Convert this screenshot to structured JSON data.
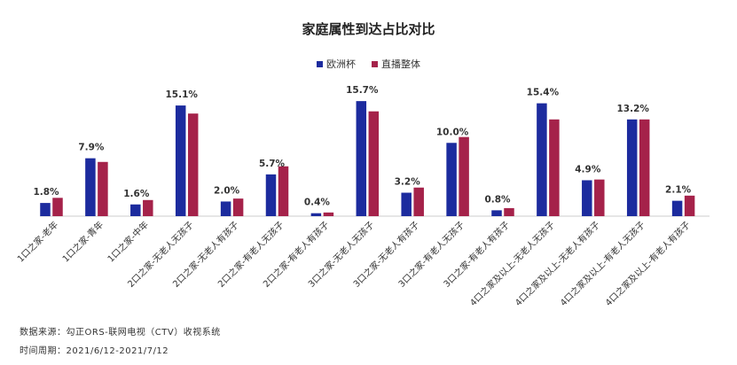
{
  "chart_data": {
    "type": "bar",
    "title": "家庭属性到达占比对比",
    "categories": [
      "1口之家-老年",
      "1口之家-青年",
      "1口之家-中年",
      "2口之家-无老人无孩子",
      "2口之家-无老人有孩子",
      "2口之家-有老人无孩子",
      "2口之家-有老人有孩子",
      "3口之家-无老人无孩子",
      "3口之家-无老人有孩子",
      "3口之家-有老人无孩子",
      "3口之家-有老人有孩子",
      "4口之家及以上-无老人无孩子",
      "4口之家及以上-无老人有孩子",
      "4口之家及以上-有老人无孩子",
      "4口之家及以上-有老人有孩子"
    ],
    "series": [
      {
        "name": "欧洲杯",
        "color": "#1c2b9e",
        "values": [
          1.8,
          7.9,
          1.6,
          15.1,
          2.0,
          5.7,
          0.4,
          15.7,
          3.2,
          10.0,
          0.8,
          15.4,
          4.9,
          13.2,
          2.1
        ]
      },
      {
        "name": "直播整体",
        "color": "#a5224a",
        "values": [
          2.5,
          7.4,
          2.2,
          14.0,
          2.4,
          6.8,
          0.5,
          14.3,
          3.9,
          10.8,
          1.1,
          13.2,
          5.0,
          13.2,
          2.8
        ]
      }
    ],
    "data_labels": [
      "1.8%",
      "7.9%",
      "1.6%",
      "15.1%",
      "2.0%",
      "5.7%",
      "0.4%",
      "15.7%",
      "3.2%",
      "10.0%",
      "0.8%",
      "15.4%",
      "4.9%",
      "13.2%",
      "2.1%"
    ],
    "ylim": [
      0,
      16.5
    ],
    "legend_position": "top-center",
    "grid": false
  },
  "footer": {
    "source": "数据来源：勾正ORS-联网电视（CTV）收视系统",
    "period": "时间周期：2021/6/12-2021/7/12"
  }
}
